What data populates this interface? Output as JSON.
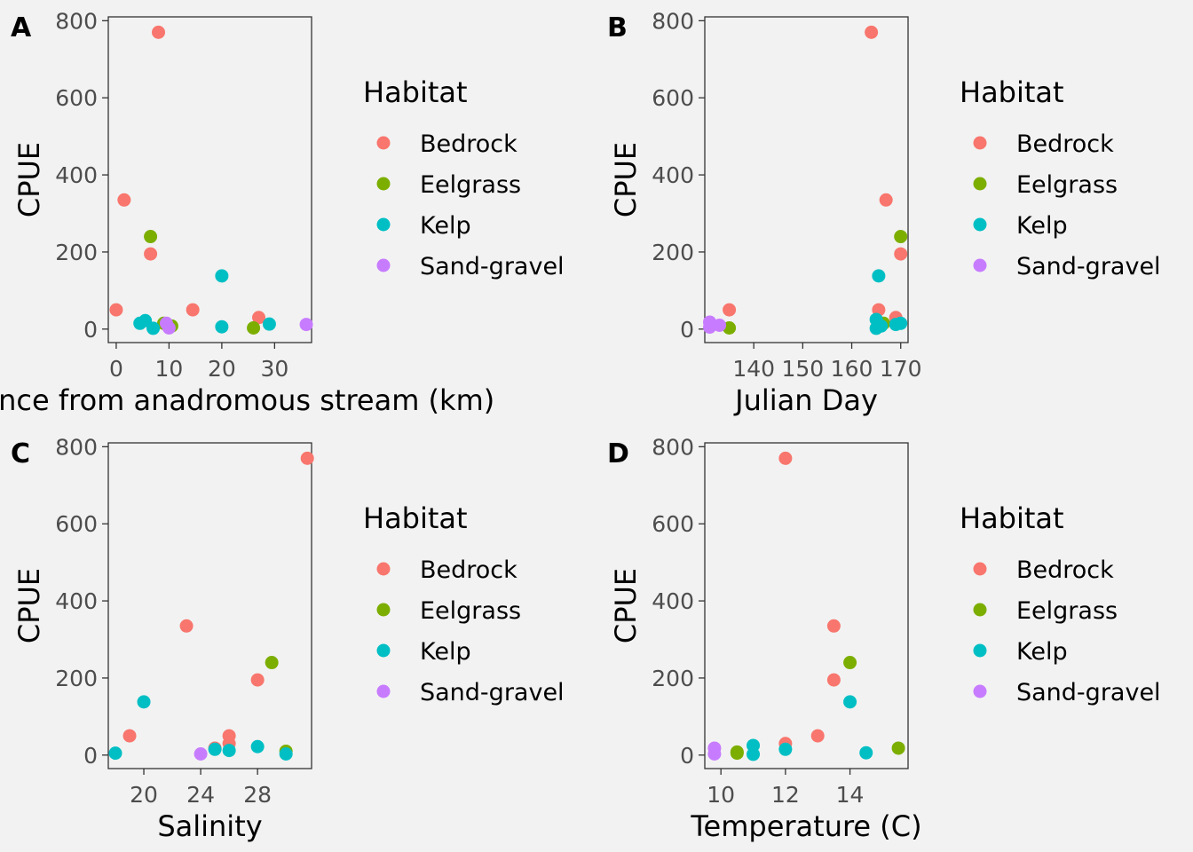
{
  "legend": {
    "title": "Habitat",
    "entries": [
      {
        "name": "Bedrock",
        "color": "#F8766D"
      },
      {
        "name": "Eelgrass",
        "color": "#7CAE00"
      },
      {
        "name": "Kelp",
        "color": "#00BFC4"
      },
      {
        "name": "Sand-gravel",
        "color": "#C77CFF"
      }
    ]
  },
  "chart_data": [
    {
      "type": "scatter",
      "panel_label": "A",
      "xlabel": "Distance from anadromous stream (km)",
      "ylabel": "CPUE",
      "xlim": [
        -1.5,
        37
      ],
      "ylim": [
        -35,
        810
      ],
      "xticks": [
        0,
        10,
        20,
        30
      ],
      "yticks": [
        0,
        200,
        400,
        600,
        800
      ],
      "series": [
        {
          "name": "Bedrock",
          "points": [
            [
              8,
              770
            ],
            [
              1.5,
              335
            ],
            [
              6.5,
              195
            ],
            [
              0,
              50
            ],
            [
              14.5,
              50
            ],
            [
              27,
              30
            ]
          ]
        },
        {
          "name": "Eelgrass",
          "points": [
            [
              6.5,
              240
            ],
            [
              9,
              15
            ],
            [
              10.5,
              8
            ],
            [
              26,
              3
            ]
          ]
        },
        {
          "name": "Kelp",
          "points": [
            [
              20,
              138
            ],
            [
              4.5,
              15
            ],
            [
              5.5,
              22
            ],
            [
              7,
              2
            ],
            [
              20,
              6
            ],
            [
              29,
              13
            ]
          ]
        },
        {
          "name": "Sand-gravel",
          "points": [
            [
              9.5,
              15
            ],
            [
              10,
              3
            ],
            [
              36,
              12
            ]
          ]
        }
      ]
    },
    {
      "type": "scatter",
      "panel_label": "B",
      "xlabel": "Julian Day",
      "ylabel": "CPUE",
      "xlim": [
        130,
        171.5
      ],
      "ylim": [
        -35,
        810
      ],
      "xticks": [
        140,
        150,
        160,
        170
      ],
      "yticks": [
        0,
        200,
        400,
        600,
        800
      ],
      "series": [
        {
          "name": "Bedrock",
          "points": [
            [
              164,
              770
            ],
            [
              167,
              335
            ],
            [
              170,
              195
            ],
            [
              135,
              50
            ],
            [
              165.5,
              50
            ],
            [
              169,
              30
            ]
          ]
        },
        {
          "name": "Eelgrass",
          "points": [
            [
              170,
              240
            ],
            [
              135,
              3
            ],
            [
              166.5,
              15
            ]
          ]
        },
        {
          "name": "Kelp",
          "points": [
            [
              165.5,
              138
            ],
            [
              165,
              25
            ],
            [
              165,
              2
            ],
            [
              166,
              8
            ],
            [
              169,
              12
            ],
            [
              170,
              15
            ]
          ]
        },
        {
          "name": "Sand-gravel",
          "points": [
            [
              131,
              18
            ],
            [
              131,
              5
            ],
            [
              133,
              10
            ]
          ]
        }
      ]
    },
    {
      "type": "scatter",
      "panel_label": "C",
      "xlabel": "Salinity",
      "ylabel": "CPUE",
      "xlim": [
        17.5,
        31.8
      ],
      "ylim": [
        -35,
        810
      ],
      "xticks": [
        20,
        24,
        28
      ],
      "yticks": [
        0,
        200,
        400,
        600,
        800
      ],
      "series": [
        {
          "name": "Bedrock",
          "points": [
            [
              31.5,
              770
            ],
            [
              23,
              335
            ],
            [
              28,
              195
            ],
            [
              19,
              50
            ],
            [
              26,
              50
            ],
            [
              26,
              30
            ],
            [
              25,
              18
            ]
          ]
        },
        {
          "name": "Eelgrass",
          "points": [
            [
              29,
              240
            ],
            [
              30,
              10
            ]
          ]
        },
        {
          "name": "Kelp",
          "points": [
            [
              20,
              138
            ],
            [
              18,
              5
            ],
            [
              25,
              15
            ],
            [
              26,
              12
            ],
            [
              28,
              22
            ],
            [
              30,
              3
            ]
          ]
        },
        {
          "name": "Sand-gravel",
          "points": [
            [
              24,
              3
            ]
          ]
        }
      ]
    },
    {
      "type": "scatter",
      "panel_label": "D",
      "xlabel": "Temperature (C)",
      "ylabel": "CPUE",
      "xlim": [
        9.5,
        15.8
      ],
      "ylim": [
        -35,
        810
      ],
      "xticks": [
        10,
        12,
        14
      ],
      "yticks": [
        0,
        200,
        400,
        600,
        800
      ],
      "series": [
        {
          "name": "Bedrock",
          "points": [
            [
              12,
              770
            ],
            [
              13.5,
              335
            ],
            [
              13.5,
              195
            ],
            [
              13,
              50
            ],
            [
              12,
              30
            ]
          ]
        },
        {
          "name": "Eelgrass",
          "points": [
            [
              14,
              240
            ],
            [
              15.5,
              18
            ],
            [
              10.5,
              8
            ],
            [
              10.5,
              5
            ]
          ]
        },
        {
          "name": "Kelp",
          "points": [
            [
              14,
              138
            ],
            [
              11,
              25
            ],
            [
              11,
              2
            ],
            [
              12,
              15
            ],
            [
              14.5,
              6
            ]
          ]
        },
        {
          "name": "Sand-gravel",
          "points": [
            [
              9.8,
              18
            ],
            [
              9.8,
              3
            ]
          ]
        }
      ]
    }
  ]
}
